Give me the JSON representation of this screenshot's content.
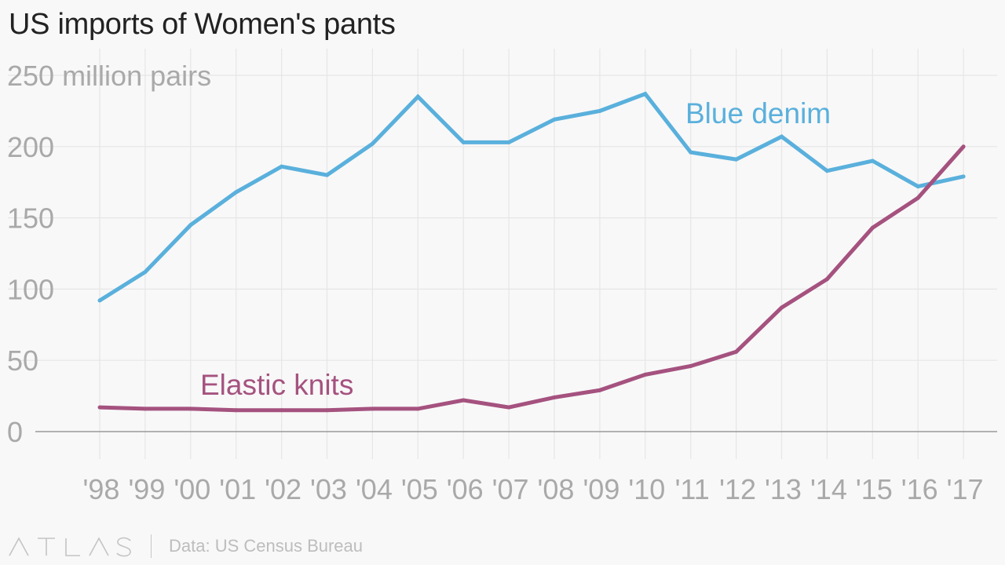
{
  "title": "US imports of Women's pants",
  "footer": {
    "brand": "ATLAS",
    "source": "Data: US Census Bureau"
  },
  "colors": {
    "blue_denim": "#5ab0dc",
    "elastic_knits": "#a5527f",
    "grid": "#e6e6e6",
    "axis": "#999999"
  },
  "chart_data": {
    "type": "line",
    "title": "US imports of Women's pants",
    "ylabel": "million pairs",
    "ylim": [
      0,
      250
    ],
    "y_ticks": [
      0,
      50,
      100,
      150,
      200,
      250
    ],
    "y_tick_labels": [
      "0",
      "50",
      "100",
      "150",
      "200",
      "250 million pairs"
    ],
    "grid": true,
    "categories": [
      "'98",
      "'99",
      "'00",
      "'01",
      "'02",
      "'03",
      "'04",
      "'05",
      "'06",
      "'07",
      "'08",
      "'09",
      "'10",
      "'11",
      "'12",
      "'13",
      "'14",
      "'15",
      "'16",
      "'17"
    ],
    "series": [
      {
        "name": "Blue denim",
        "color": "#5ab0dc",
        "values": [
          92,
          112,
          145,
          168,
          186,
          180,
          202,
          235,
          203,
          203,
          219,
          225,
          237,
          196,
          191,
          207,
          183,
          190,
          172,
          179
        ]
      },
      {
        "name": "Elastic knits",
        "color": "#a5527f",
        "values": [
          17,
          16,
          16,
          15,
          15,
          15,
          16,
          16,
          22,
          17,
          24,
          29,
          40,
          46,
          56,
          87,
          107,
          143,
          164,
          200
        ]
      }
    ]
  }
}
